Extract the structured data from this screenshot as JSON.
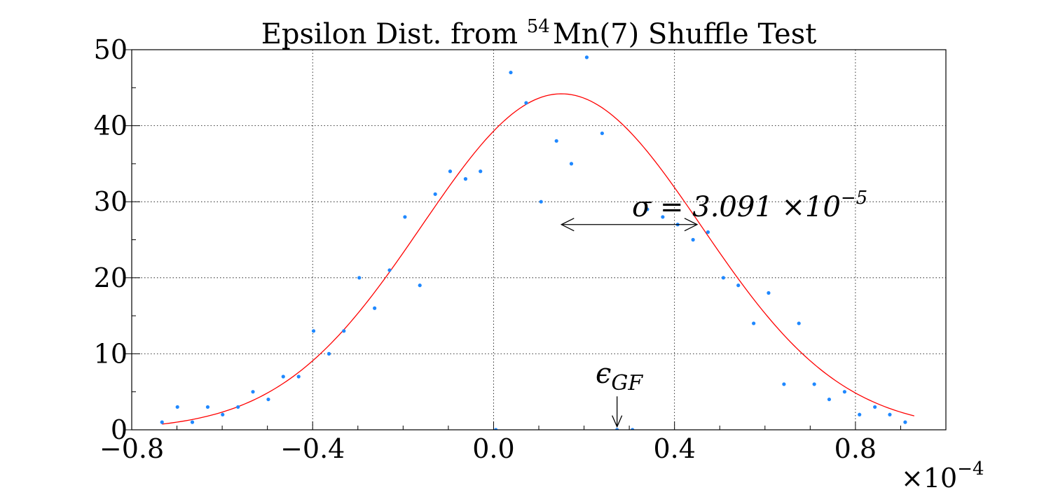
{
  "chart_data": {
    "type": "scatter",
    "title": {
      "prefix": "Epsilon Dist. from ",
      "superscript": "54",
      "suffix": "Mn(7) Shuffle Test"
    },
    "xlabel": "",
    "ylabel": "",
    "xlim": [
      -0.8,
      1.0
    ],
    "ylim": [
      0,
      50
    ],
    "x_ticks": [
      -0.8,
      -0.4,
      0.0,
      0.4,
      0.8
    ],
    "x_tick_labels": [
      "−0.8",
      "−0.4",
      "0.0",
      "0.4",
      "0.8"
    ],
    "y_ticks": [
      0,
      10,
      20,
      30,
      40,
      50
    ],
    "y_tick_labels": [
      "0",
      "10",
      "20",
      "30",
      "40",
      "50"
    ],
    "x_offset_label": {
      "base": "×10",
      "exponent": "−4"
    },
    "grid": true,
    "series": [
      {
        "name": "histogram counts",
        "type": "scatter",
        "color": "#1f88ff",
        "x": [
          -0.733,
          -0.699,
          -0.666,
          -0.632,
          -0.599,
          -0.565,
          -0.532,
          -0.498,
          -0.465,
          -0.431,
          -0.398,
          -0.364,
          -0.331,
          -0.297,
          -0.263,
          -0.23,
          -0.196,
          -0.163,
          -0.129,
          -0.096,
          -0.062,
          -0.029,
          0.005,
          0.038,
          0.072,
          0.105,
          0.139,
          0.172,
          0.206,
          0.24,
          0.273,
          0.307,
          0.34,
          0.374,
          0.407,
          0.441,
          0.474,
          0.508,
          0.541,
          0.575,
          0.608,
          0.642,
          0.675,
          0.709,
          0.742,
          0.776,
          0.809,
          0.843,
          0.876,
          0.91
        ],
        "y": [
          1,
          3,
          1,
          3,
          2,
          3,
          5,
          4,
          7,
          7,
          13,
          10,
          13,
          20,
          16,
          21,
          28,
          19,
          31,
          34,
          33,
          34,
          0,
          47,
          43,
          30,
          38,
          35,
          49,
          39,
          0,
          0,
          29,
          28,
          27,
          25,
          26,
          20,
          19,
          14,
          18,
          6,
          14,
          6,
          4,
          5,
          2,
          3,
          2,
          1
        ]
      },
      {
        "name": "gaussian fit",
        "type": "line",
        "color": "#ff0000",
        "mean": 0.15,
        "sigma": 0.3091,
        "amplitude": 44.2,
        "x_range": [
          -0.733,
          0.93
        ]
      }
    ],
    "annotations": [
      {
        "name": "sigma",
        "label": "σ = 3.091 ×10",
        "exponent": "−5",
        "arrow_from_x": 0.15,
        "arrow_to_x": 0.45,
        "arrow_y": 27
      },
      {
        "name": "epsilon-gf",
        "label": "ϵ",
        "subscript": "GF",
        "x": 0.273,
        "arrow_top_y": 4.4,
        "arrow_bottom_y": 0.4
      }
    ]
  }
}
